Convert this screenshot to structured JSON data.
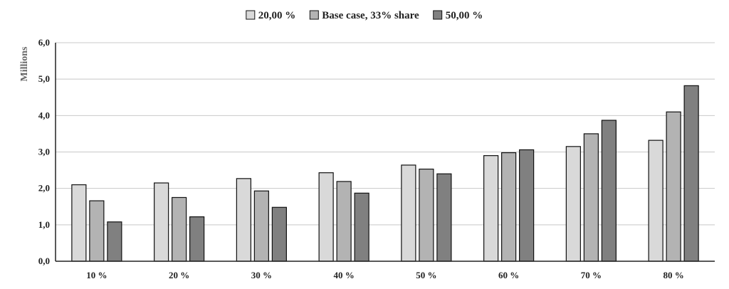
{
  "chart_data": {
    "type": "bar",
    "title": "",
    "xlabel": "",
    "ylabel": "Millions",
    "ylim": [
      0,
      6
    ],
    "ytick_step": 1,
    "ytick_labels": [
      "0,0",
      "1,0",
      "2,0",
      "3,0",
      "4,0",
      "5,0",
      "6,0"
    ],
    "categories": [
      "10 %",
      "20 %",
      "30 %",
      "40 %",
      "50 %",
      "60 %",
      "70 %",
      "80 %"
    ],
    "series": [
      {
        "name": "20,00 %",
        "color": "#d9d9d9",
        "values": [
          2.1,
          2.15,
          2.27,
          2.43,
          2.64,
          2.9,
          3.15,
          3.32
        ]
      },
      {
        "name": "Base case, 33% share",
        "color": "#b3b3b3",
        "values": [
          1.66,
          1.75,
          1.93,
          2.19,
          2.53,
          2.98,
          3.5,
          4.1
        ]
      },
      {
        "name": "50,00 %",
        "color": "#808080",
        "values": [
          1.08,
          1.22,
          1.48,
          1.87,
          2.4,
          3.06,
          3.87,
          4.82
        ]
      }
    ],
    "grid": true,
    "legend_position": "top-center"
  }
}
